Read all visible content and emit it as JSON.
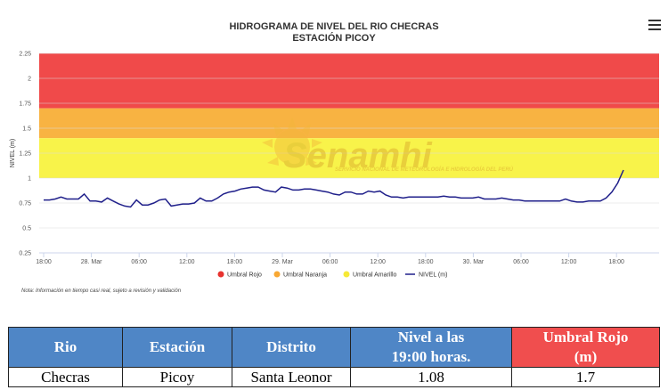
{
  "chart_data": {
    "type": "line",
    "title": "HIDROGRAMA DE NIVEL DEL RIO CHECRAS",
    "subtitle": "ESTACIÓN PICOY",
    "ylabel": "NIVEL (m)",
    "xlabel": "",
    "ylim": [
      0.25,
      2.25
    ],
    "yticks": [
      "0.25",
      "0.5",
      "0.75",
      "1",
      "1.25",
      "1.5",
      "1.75",
      "2",
      "2.25"
    ],
    "xticks": [
      "18:00",
      "28. Mar",
      "06:00",
      "12:00",
      "18:00",
      "29. Mar",
      "06:00",
      "12:00",
      "18:00",
      "30. Mar",
      "06:00",
      "12:00",
      "18:00"
    ],
    "bands": [
      {
        "name": "Umbral Rojo",
        "from": 1.7,
        "to": 2.25,
        "color": "#f04a4a"
      },
      {
        "name": "Umbral Naranja",
        "from": 1.4,
        "to": 1.7,
        "color": "#f8b342"
      },
      {
        "name": "Umbral Amarillo",
        "from": 1.0,
        "to": 1.4,
        "color": "#f8f34a"
      }
    ],
    "series": [
      {
        "name": "NIVEL (m)",
        "color": "#1f1f8a",
        "x": [
          0,
          1,
          2,
          3,
          4,
          5,
          6,
          7,
          8,
          9,
          10,
          11,
          12,
          13,
          14,
          15,
          16,
          17,
          18,
          19,
          20,
          21,
          22,
          23,
          24,
          25,
          26,
          27,
          28,
          29,
          30,
          31,
          32,
          33,
          34,
          35,
          36,
          37,
          38,
          39,
          40,
          41,
          42,
          43,
          44,
          45,
          46,
          47,
          48,
          49,
          50,
          51,
          52,
          53,
          54,
          55,
          56,
          57,
          58,
          59,
          60,
          61,
          62,
          63,
          64,
          65,
          66,
          67,
          68,
          69,
          70,
          71,
          72,
          73,
          74,
          75,
          76,
          77,
          78,
          79,
          80,
          81,
          82,
          83,
          84,
          85,
          86,
          87,
          88,
          89,
          90,
          91,
          92,
          93,
          94,
          95,
          96,
          97,
          98,
          99,
          100
        ],
        "values": [
          0.78,
          0.78,
          0.79,
          0.81,
          0.79,
          0.79,
          0.79,
          0.84,
          0.77,
          0.77,
          0.76,
          0.8,
          0.77,
          0.74,
          0.72,
          0.71,
          0.78,
          0.73,
          0.73,
          0.75,
          0.78,
          0.79,
          0.72,
          0.73,
          0.74,
          0.74,
          0.75,
          0.8,
          0.77,
          0.77,
          0.8,
          0.84,
          0.86,
          0.87,
          0.89,
          0.9,
          0.91,
          0.91,
          0.88,
          0.87,
          0.86,
          0.91,
          0.9,
          0.88,
          0.88,
          0.89,
          0.89,
          0.88,
          0.87,
          0.86,
          0.84,
          0.83,
          0.86,
          0.86,
          0.84,
          0.84,
          0.87,
          0.86,
          0.87,
          0.83,
          0.81,
          0.81,
          0.8,
          0.81,
          0.81,
          0.81,
          0.81,
          0.81,
          0.81,
          0.82,
          0.81,
          0.81,
          0.8,
          0.8,
          0.8,
          0.81,
          0.79,
          0.79,
          0.79,
          0.8,
          0.79,
          0.78,
          0.78,
          0.77,
          0.77,
          0.77,
          0.77,
          0.77,
          0.77,
          0.77,
          0.79,
          0.77,
          0.76,
          0.76,
          0.77,
          0.77,
          0.77,
          0.8,
          0.86,
          0.95,
          1.08
        ]
      }
    ],
    "legend_position": "bottom",
    "legend": [
      "Umbral Rojo",
      "Umbral Naranja",
      "Umbral Amarillo",
      "NIVEL (m)"
    ],
    "note": "Nota: Información en tiempo casi real, sujeto a revisión y validación",
    "watermark": {
      "name": "Senamhi",
      "subtitle": "SERVICIO NACIONAL DE METEOROLOGÍA E HIDROLOGÍA DEL PERÚ"
    }
  },
  "table": {
    "headers": [
      "Rio",
      "Estación",
      "Distrito",
      "Nivel a las",
      "19:00 horas.",
      "Umbral Rojo",
      "(m)"
    ],
    "row": [
      "Checras",
      "Picoy",
      "Santa Leonor",
      "1.08",
      "1.7"
    ]
  },
  "colors": {
    "header_blue": "#4f86c6",
    "header_red": "#f04e4e"
  }
}
